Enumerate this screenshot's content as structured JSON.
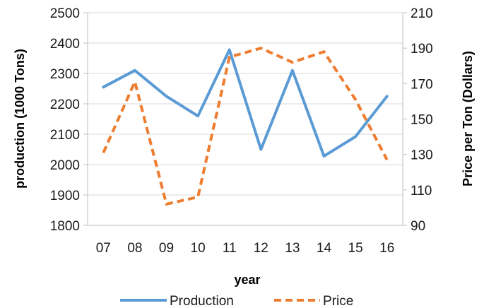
{
  "chart_data": {
    "type": "line",
    "categories": [
      "07",
      "08",
      "09",
      "10",
      "11",
      "12",
      "13",
      "14",
      "15",
      "16"
    ],
    "xlabel": "year",
    "ylabel": "production (1000 Tons)",
    "y2label": "Price per Ton (Dollars)",
    "ylim": [
      1800,
      2500
    ],
    "y2lim": [
      90,
      210
    ],
    "yticks": [
      "1800",
      "1900",
      "2000",
      "2100",
      "2200",
      "2300",
      "2400",
      "2500"
    ],
    "y2ticks": [
      "90",
      "110",
      "130",
      "150",
      "170",
      "190",
      "210"
    ],
    "grid": true,
    "legend": "bottom",
    "series": [
      {
        "name": "Production",
        "axis": "left",
        "color": "#5b9bd5",
        "style": "solid",
        "values": [
          2255,
          2310,
          2225,
          2160,
          2378,
          2050,
          2310,
          2028,
          2092,
          2225
        ]
      },
      {
        "name": "Price",
        "axis": "right",
        "color": "#ed7d31",
        "style": "dashed",
        "values": [
          131,
          171,
          102,
          106,
          185,
          190,
          182,
          188,
          161,
          127
        ]
      }
    ]
  }
}
